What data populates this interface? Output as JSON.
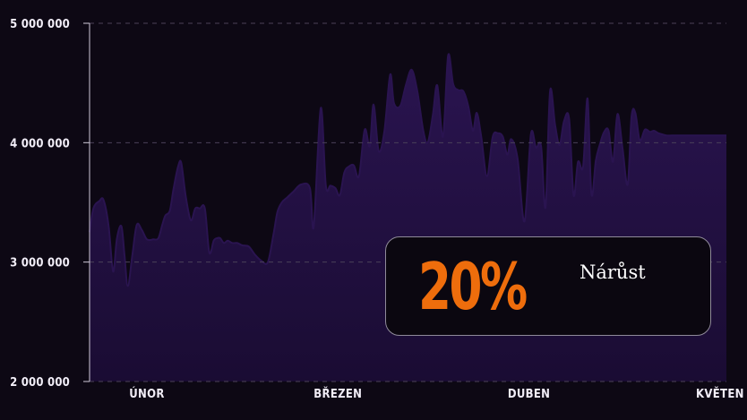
{
  "chart_data": {
    "type": "area",
    "title": "",
    "xlabel": "",
    "ylabel": "",
    "ylim": [
      2000000,
      5000000
    ],
    "yticks": [
      {
        "value": 2000000,
        "label": "2 000 000"
      },
      {
        "value": 3000000,
        "label": "3 000 000"
      },
      {
        "value": 4000000,
        "label": "4 000 000"
      },
      {
        "value": 5000000,
        "label": "5 000 000"
      }
    ],
    "xlim": [
      0,
      100
    ],
    "xticks": [
      {
        "value": 9,
        "label": "ÚNOR"
      },
      {
        "value": 39,
        "label": "BŘEZEN"
      },
      {
        "value": 69,
        "label": "DUBEN"
      },
      {
        "value": 99,
        "label": "KVĚTEN"
      }
    ],
    "grid": "horizontal-dashed",
    "fill_color": "#1f0e3b",
    "line_color": "#2a1450",
    "series": [
      {
        "x": [
          0,
          0.6,
          1.5,
          2.2,
          3,
          3.7,
          4.3,
          5,
          5.5,
          6,
          6.7,
          7.4,
          8.2,
          9,
          10,
          10.8,
          11.4,
          11.9,
          12.6,
          13.2,
          13.9,
          14.4,
          15.1,
          15.9,
          16.6,
          17.3,
          18.1,
          18.8,
          19.5,
          20,
          20.5,
          21.1,
          21.7,
          22.4,
          23.2,
          24,
          25,
          26,
          27,
          28,
          28.9,
          29.5,
          30.2,
          31,
          32,
          33.2,
          34.6,
          35.2,
          36.3,
          37.1,
          37.8,
          38.6,
          39.3,
          40,
          40.7,
          41.5,
          42.3,
          43.2,
          44,
          44.6,
          45.4,
          46.3,
          47.2,
          47.8,
          48.8,
          49.7,
          50.6,
          51.5,
          52.4,
          53.1,
          53.9,
          54.6,
          55.5,
          56.3,
          57.1,
          57.9,
          58.7,
          59.5,
          60.2,
          60.8,
          61.5,
          62.4,
          63.3,
          64.1,
          64.9,
          65.6,
          66.2,
          67.2,
          68.3,
          69.3,
          70.1,
          70.9,
          71.6,
          72.3,
          73.1,
          73.8,
          74.5,
          75.3,
          76,
          76.7,
          77.5,
          78.2,
          78.8,
          79.5,
          80.1,
          80.8,
          81.5,
          82.2,
          82.9,
          83.7,
          84.5,
          85.1,
          85.7,
          86.4,
          87.2,
          88,
          88.6,
          89.3,
          89.9,
          90.6,
          91.4,
          92.1,
          92.7,
          93.3,
          94.1,
          94.9,
          95.5,
          96.3,
          96.9,
          97.6,
          98.2,
          98.9,
          99.5,
          100
        ],
        "values": [
          3250000,
          3450000,
          3510000,
          3520000,
          3300000,
          2920000,
          3200000,
          3300000,
          3050000,
          2800000,
          3050000,
          3310000,
          3270000,
          3190000,
          3190000,
          3200000,
          3310000,
          3390000,
          3430000,
          3620000,
          3800000,
          3830000,
          3550000,
          3350000,
          3450000,
          3450000,
          3450000,
          3080000,
          3180000,
          3200000,
          3200000,
          3160000,
          3180000,
          3160000,
          3160000,
          3140000,
          3130000,
          3060000,
          3010000,
          3000000,
          3240000,
          3420000,
          3500000,
          3540000,
          3590000,
          3650000,
          3620000,
          3300000,
          4290000,
          3640000,
          3640000,
          3620000,
          3560000,
          3750000,
          3800000,
          3810000,
          3720000,
          4110000,
          3970000,
          4320000,
          3930000,
          4100000,
          4570000,
          4330000,
          4310000,
          4490000,
          4610000,
          4420000,
          4100000,
          4000000,
          4230000,
          4480000,
          4050000,
          4730000,
          4490000,
          4440000,
          4430000,
          4300000,
          4100000,
          4250000,
          4050000,
          3720000,
          4050000,
          4080000,
          4050000,
          3900000,
          4030000,
          3870000,
          3340000,
          4070000,
          3960000,
          3970000,
          3460000,
          4430000,
          4150000,
          3980000,
          4180000,
          4200000,
          3560000,
          3840000,
          3800000,
          4370000,
          3570000,
          3850000,
          3980000,
          4090000,
          4100000,
          3840000,
          4240000,
          3950000,
          3650000,
          4220000,
          4250000,
          4020000,
          4110000,
          4090000,
          4100000,
          4080000,
          4070000,
          4060000,
          4060000,
          4060000,
          4060000,
          4060000,
          4060000,
          4060000,
          4060000,
          4060000,
          4060000,
          4060000,
          4060000,
          4060000,
          4060000,
          4060000
        ]
      }
    ]
  },
  "stat": {
    "value": "20%",
    "label": "Nárůst",
    "value_color": "#ee6d0c"
  }
}
